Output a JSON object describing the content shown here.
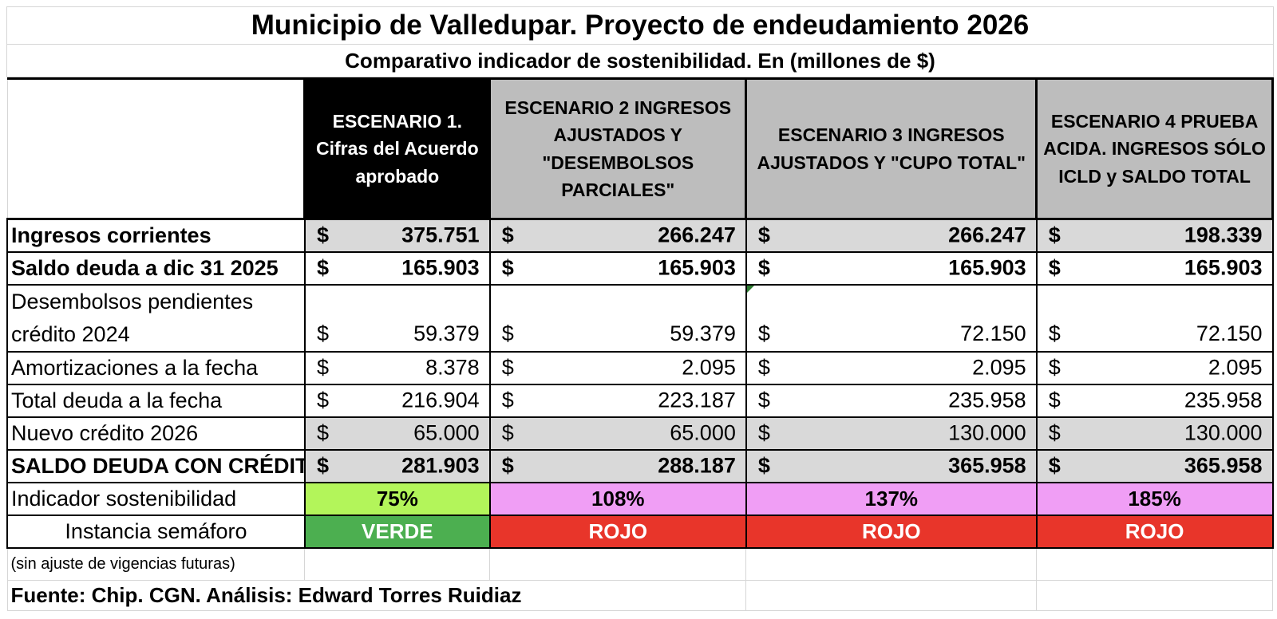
{
  "title": "Municipio de Valledupar. Proyecto de endeudamiento 2026",
  "subtitle": "Comparativo indicador de sostenibilidad. En (millones de $)",
  "colors": {
    "scenario1_header_bg": "#000000",
    "scenario_header_bg": "#bdbdbd",
    "shaded_row_bg": "#d9d9d9",
    "indicator_green_bg": "#b3f55a",
    "indicator_pink_bg": "#f09ef5",
    "semaphore_green_bg": "#4caf50",
    "semaphore_red_bg": "#e8352a"
  },
  "headers": [
    "ESCENARIO 1. Cifras del Acuerdo aprobado",
    "ESCENARIO 2 INGRESOS AJUSTADOS Y \"DESEMBOLSOS PARCIALES\"",
    "ESCENARIO 3  INGRESOS AJUSTADOS Y  \"CUPO TOTAL\"",
    "ESCENARIO 4 PRUEBA ACIDA. INGRESOS SÓLO ICLD y SALDO TOTAL"
  ],
  "currency_symbol": "$",
  "rows": [
    {
      "label": "Ingresos corrientes",
      "values": [
        "375.751",
        "266.247",
        "266.247",
        "198.339"
      ]
    },
    {
      "label": "Saldo deuda a dic 31 2025",
      "values": [
        "165.903",
        "165.903",
        "165.903",
        "165.903"
      ]
    },
    {
      "label": "Desembolsos pendientes crédito 2024",
      "values": [
        "59.379",
        "59.379",
        "72.150",
        "72.150"
      ]
    },
    {
      "label": "Amortizaciones a la fecha",
      "values": [
        "8.378",
        "2.095",
        "2.095",
        "2.095"
      ]
    },
    {
      "label": "Total deuda a la fecha",
      "values": [
        "216.904",
        "223.187",
        "235.958",
        "235.958"
      ]
    },
    {
      "label": "Nuevo crédito 2026",
      "values": [
        "65.000",
        "65.000",
        "130.000",
        "130.000"
      ]
    },
    {
      "label": "SALDO DEUDA CON CRÉDITO",
      "values": [
        "281.903",
        "288.187",
        "365.958",
        "365.958"
      ]
    }
  ],
  "indicator": {
    "label": "Indicador sostenibilidad",
    "values": [
      "75%",
      "108%",
      "137%",
      "185%"
    ]
  },
  "semaphore": {
    "label": "Instancia semáforo",
    "values": [
      "VERDE",
      "ROJO",
      "ROJO",
      "ROJO"
    ]
  },
  "note": "(sin ajuste de vigencias futuras)",
  "source": "Fuente: Chip. CGN. Análisis: Edward Torres Ruidiaz"
}
